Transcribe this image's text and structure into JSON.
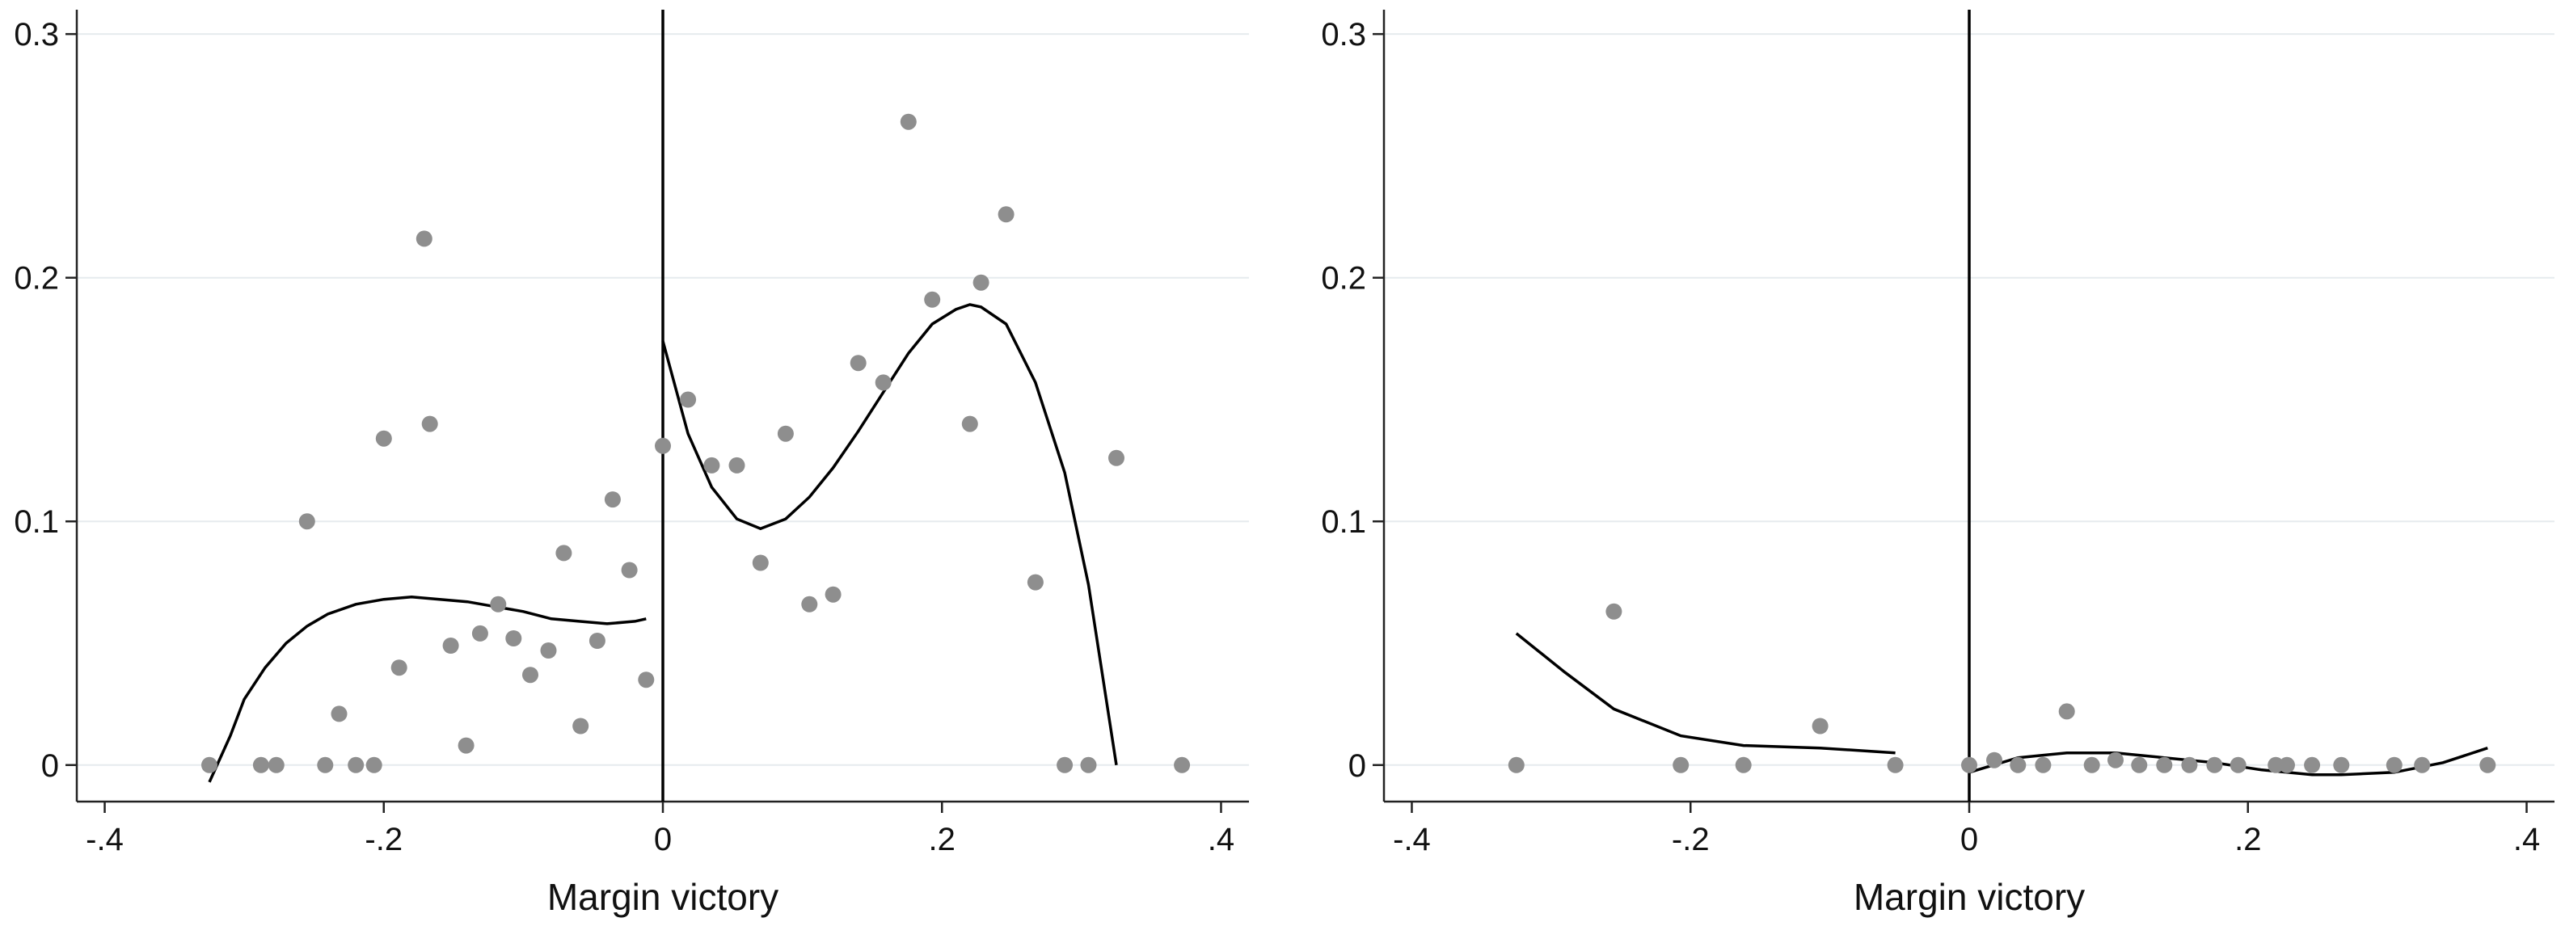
{
  "chart_data": [
    {
      "type": "scatter",
      "title": "",
      "xlabel": "Margin victory",
      "ylabel": "",
      "xlim": [
        -0.42,
        0.42
      ],
      "ylim": [
        -0.015,
        0.31
      ],
      "xticks": [
        -0.4,
        -0.2,
        0,
        0.2,
        0.4
      ],
      "xtick_labels": [
        "-.4",
        "-.2",
        "0",
        ".2",
        ".4"
      ],
      "yticks": [
        0,
        0.1,
        0.2,
        0.3
      ],
      "ytick_labels": [
        "0",
        "0.1",
        "0.2",
        "0.3"
      ],
      "grid": "horizontal",
      "cutoff_x": 0,
      "colors": {
        "points": "#8e8e8e",
        "fit": "#000000",
        "grid": "#e6ebee"
      },
      "series": [
        {
          "kind": "points",
          "x": [
            -0.325,
            -0.288,
            -0.277,
            -0.255,
            -0.242,
            -0.232,
            -0.22,
            -0.207,
            -0.2,
            -0.189,
            -0.171,
            -0.167,
            -0.152,
            -0.141,
            -0.131,
            -0.118,
            -0.107,
            -0.095,
            -0.082,
            -0.071,
            -0.059,
            -0.047,
            -0.036,
            -0.024,
            -0.012,
            0.0,
            0.018,
            0.035,
            0.053,
            0.07,
            0.088,
            0.105,
            0.122,
            0.14,
            0.158,
            0.176,
            0.193,
            0.22,
            0.228,
            0.246,
            0.267,
            0.288,
            0.305,
            0.325,
            0.372
          ],
          "y": [
            0.0,
            0.0,
            0.0,
            0.1,
            0.0,
            0.021,
            0.0,
            0.0,
            0.134,
            0.04,
            0.216,
            0.14,
            0.049,
            0.008,
            0.054,
            0.066,
            0.052,
            0.037,
            0.047,
            0.087,
            0.016,
            0.051,
            0.109,
            0.08,
            0.035,
            0.131,
            0.15,
            0.123,
            0.123,
            0.083,
            0.136,
            0.066,
            0.07,
            0.165,
            0.157,
            0.264,
            0.191,
            0.14,
            0.198,
            0.226,
            0.075,
            0.0,
            0.0,
            0.126,
            0.0
          ]
        },
        {
          "kind": "fit",
          "x": [
            -0.325,
            -0.31,
            -0.3,
            -0.285,
            -0.27,
            -0.255,
            -0.24,
            -0.22,
            -0.2,
            -0.18,
            -0.16,
            -0.14,
            -0.12,
            -0.1,
            -0.08,
            -0.06,
            -0.04,
            -0.02,
            -0.012
          ],
          "y": [
            -0.007,
            0.012,
            0.027,
            0.04,
            0.05,
            0.057,
            0.062,
            0.066,
            0.068,
            0.069,
            0.068,
            0.067,
            0.065,
            0.063,
            0.06,
            0.059,
            0.058,
            0.059,
            0.06
          ]
        },
        {
          "kind": "fit",
          "x": [
            0.0,
            0.018,
            0.035,
            0.053,
            0.07,
            0.088,
            0.105,
            0.122,
            0.14,
            0.158,
            0.176,
            0.193,
            0.21,
            0.22,
            0.228,
            0.246,
            0.267,
            0.288,
            0.305,
            0.325
          ],
          "y": [
            0.174,
            0.136,
            0.114,
            0.101,
            0.097,
            0.101,
            0.11,
            0.122,
            0.137,
            0.153,
            0.169,
            0.181,
            0.187,
            0.189,
            0.188,
            0.181,
            0.157,
            0.12,
            0.074,
            0.0
          ]
        }
      ]
    },
    {
      "type": "scatter",
      "title": "",
      "xlabel": "Margin victory",
      "ylabel": "",
      "xlim": [
        -0.42,
        0.42
      ],
      "ylim": [
        -0.015,
        0.31
      ],
      "xticks": [
        -0.4,
        -0.2,
        0,
        0.2,
        0.4
      ],
      "xtick_labels": [
        "-.4",
        "-.2",
        "0",
        ".2",
        ".4"
      ],
      "yticks": [
        0,
        0.1,
        0.2,
        0.3
      ],
      "ytick_labels": [
        "0",
        "0.1",
        "0.2",
        "0.3"
      ],
      "grid": "horizontal",
      "cutoff_x": 0,
      "colors": {
        "points": "#8e8e8e",
        "fit": "#000000",
        "grid": "#e6ebee"
      },
      "series": [
        {
          "kind": "points",
          "x": [
            -0.325,
            -0.255,
            -0.207,
            -0.162,
            -0.107,
            -0.053,
            0.0,
            0.018,
            0.035,
            0.053,
            0.07,
            0.088,
            0.105,
            0.122,
            0.14,
            0.158,
            0.176,
            0.193,
            0.22,
            0.228,
            0.246,
            0.267,
            0.305,
            0.325,
            0.372
          ],
          "y": [
            0.0,
            0.063,
            0.0,
            0.0,
            0.016,
            0.0,
            0.0,
            0.002,
            0.0,
            0.0,
            0.022,
            0.0,
            0.002,
            0.0,
            0.0,
            0.0,
            0.0,
            0.0,
            0.0,
            0.0,
            0.0,
            0.0,
            0.0,
            0.0,
            0.0
          ]
        },
        {
          "kind": "fit",
          "x": [
            -0.325,
            -0.29,
            -0.255,
            -0.207,
            -0.162,
            -0.107,
            -0.053
          ],
          "y": [
            0.054,
            0.038,
            0.023,
            0.012,
            0.008,
            0.007,
            0.005
          ]
        },
        {
          "kind": "fit",
          "x": [
            0.0,
            0.035,
            0.07,
            0.105,
            0.14,
            0.176,
            0.21,
            0.246,
            0.267,
            0.305,
            0.34,
            0.372
          ],
          "y": [
            -0.003,
            0.003,
            0.005,
            0.005,
            0.003,
            0.001,
            -0.002,
            -0.004,
            -0.004,
            -0.003,
            0.001,
            0.007
          ]
        }
      ]
    }
  ]
}
